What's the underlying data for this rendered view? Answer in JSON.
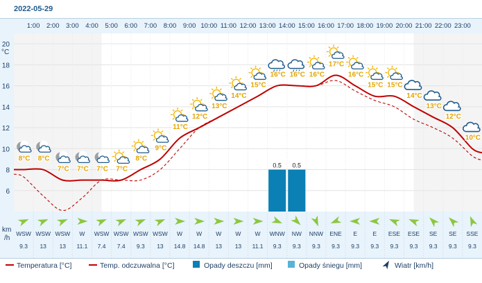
{
  "header": {
    "date": "2022-05-29"
  },
  "hours": [
    "1:00",
    "2:00",
    "3:00",
    "4:00",
    "5:00",
    "6:00",
    "7:00",
    "8:00",
    "9:00",
    "10:00",
    "11:00",
    "12:00",
    "13:00",
    "14:00",
    "15:00",
    "16:00",
    "17:00",
    "18:00",
    "19:00",
    "20:00",
    "21:00",
    "22:00",
    "23:00"
  ],
  "axis": {
    "unit": "°C",
    "ticks": [
      20,
      18,
      16,
      14,
      12,
      10,
      8,
      6
    ]
  },
  "wind_axis": {
    "unit_top": "km",
    "unit_bottom": "/h"
  },
  "colors": {
    "temperature": "#c00000",
    "feels_like": "#c00000",
    "rain": "#0a80b4",
    "snow": "#56b4d6",
    "wind_arrow": "#8cc63f"
  },
  "chart_data": {
    "type": "line",
    "date": "2022-05-29",
    "x": [
      "0:30",
      "1:30",
      "2:30",
      "3:30",
      "4:30",
      "5:30",
      "6:30",
      "7:30",
      "8:30",
      "9:30",
      "10:30",
      "11:30",
      "12:30",
      "13:30",
      "14:30",
      "15:30",
      "16:30",
      "17:30",
      "18:30",
      "19:30",
      "20:30",
      "21:30",
      "22:30",
      "23:30"
    ],
    "temperature_labels": [
      "8°C",
      "8°C",
      "7°C",
      "7°C",
      "7°C",
      "7°C",
      "8°C",
      "9°C",
      "11°C",
      "12°C",
      "13°C",
      "14°C",
      "15°C",
      "16°C",
      "16°C",
      "16°C",
      "17°C",
      "16°C",
      "15°C",
      "15°C",
      "14°C",
      "13°C",
      "12°C",
      "10°C"
    ],
    "series": [
      {
        "name": "Temperatura [°C]",
        "values": [
          8.0,
          8.0,
          7.0,
          7.0,
          7.0,
          7.0,
          8.0,
          9.0,
          11.0,
          12.0,
          13.0,
          14.0,
          15.0,
          16.0,
          16.0,
          16.0,
          17.0,
          16.0,
          15.0,
          15.0,
          14.0,
          13.0,
          12.0,
          10.0
        ]
      },
      {
        "name": "Temp. odczuwalna [°C]",
        "values": [
          7.3,
          5.5,
          4.1,
          5.3,
          7.0,
          7.0,
          7.0,
          8.0,
          10.0,
          12.0,
          13.0,
          14.0,
          15.0,
          16.0,
          16.0,
          16.0,
          16.5,
          15.5,
          14.6,
          14.0,
          12.8,
          12.0,
          11.0,
          9.3
        ]
      },
      {
        "name": "Opady deszczu [mm]",
        "values": [
          0,
          0,
          0,
          0,
          0,
          0,
          0,
          0,
          0,
          0,
          0,
          0,
          0,
          0.5,
          0.5,
          0,
          0,
          0,
          0,
          0,
          0,
          0,
          0,
          0
        ]
      },
      {
        "name": "Opady śniegu [mm]",
        "values": [
          0,
          0,
          0,
          0,
          0,
          0,
          0,
          0,
          0,
          0,
          0,
          0,
          0,
          0,
          0,
          0,
          0,
          0,
          0,
          0,
          0,
          0,
          0,
          0
        ]
      }
    ],
    "precip_labels": [
      "",
      "",
      "",
      "",
      "",
      "",
      "",
      "",
      "",
      "",
      "",
      "",
      "",
      "0.5",
      "0.5",
      "",
      "",
      "",
      "",
      "",
      "",
      "",
      "",
      ""
    ],
    "wind_dir": [
      "WSW",
      "WSW",
      "WSW",
      "W",
      "WSW",
      "WSW",
      "WSW",
      "WSW",
      "W",
      "W",
      "W",
      "W",
      "W",
      "WNW",
      "NW",
      "NNW",
      "ENE",
      "E",
      "E",
      "ESE",
      "ESE",
      "SE",
      "SE",
      "SSE"
    ],
    "wind_speed": [
      "9.3",
      "13",
      "13",
      "11.1",
      "7.4",
      "7.4",
      "9.3",
      "13",
      "14.8",
      "14.8",
      "13",
      "13",
      "11.1",
      "9.3",
      "9.3",
      "9.3",
      "9.3",
      "9.3",
      "9.3",
      "9.3",
      "9.3",
      "9.3",
      "9.3",
      "9.3"
    ],
    "icons": [
      "moon-cloud-icon",
      "moon-cloud-icon",
      "moon-cloud-icon",
      "moon-cloud-icon",
      "moon-cloud-icon",
      "sun-cloud-icon",
      "sun-cloud-icon",
      "sun-cloud-icon",
      "sun-cloud-icon",
      "sun-cloud-icon",
      "sun-cloud-icon",
      "sun-cloud-icon",
      "sun-cloud-icon",
      "cloud-rain-icon",
      "cloud-rain-icon",
      "sun-cloud-icon",
      "sun-cloud-icon",
      "sun-cloud-icon",
      "sun-cloud-icon",
      "sun-cloud-icon",
      "cloud-icon",
      "cloud-icon",
      "cloud-icon",
      "cloud-icon"
    ],
    "ylim": [
      4,
      21
    ],
    "yticks": [
      6,
      8,
      10,
      12,
      14,
      16,
      18,
      20
    ],
    "ylabel": "°C",
    "grid": true,
    "legend_position": "bottom"
  },
  "legend": [
    {
      "label": "Temperatura [°C]",
      "kind": "line"
    },
    {
      "label": "Temp. odczuwalna [°C]",
      "kind": "line"
    },
    {
      "label": "Opady deszczu [mm]",
      "kind": "rain"
    },
    {
      "label": "Opady śniegu [mm]",
      "kind": "snow"
    },
    {
      "label": "Wiatr [km/h]",
      "kind": "wind"
    }
  ]
}
